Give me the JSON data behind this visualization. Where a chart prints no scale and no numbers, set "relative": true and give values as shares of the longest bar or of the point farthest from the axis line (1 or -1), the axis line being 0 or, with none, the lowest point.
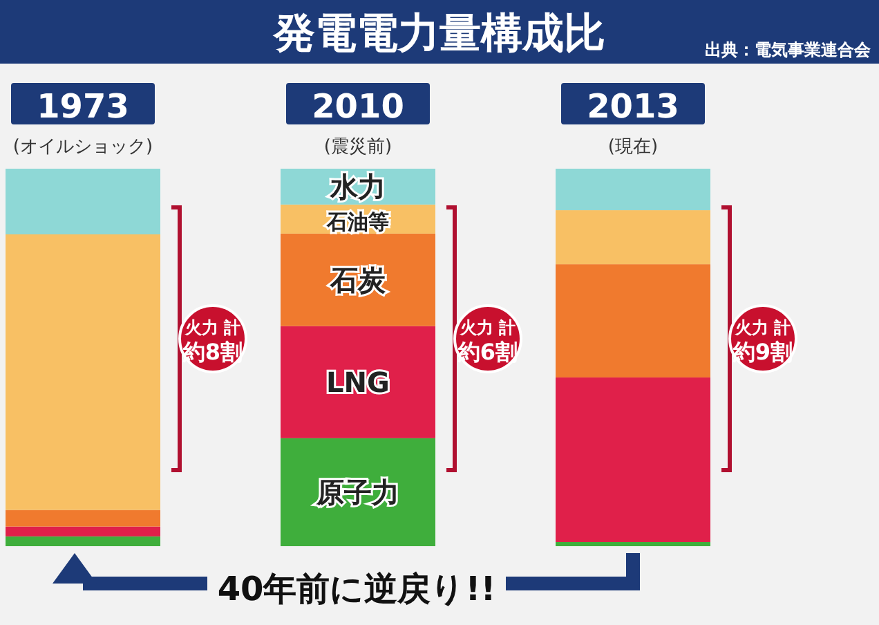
{
  "chart_data": {
    "type": "bar",
    "title": "発電電力量構成比",
    "stacked": true,
    "relative": true,
    "legend": false,
    "categories": [
      "1973\n(オイルショック)",
      "2010\n(震災前)",
      "2013\n(現在)"
    ],
    "series": [
      {
        "name": "原子力",
        "color": "#3fae3c",
        "values": [
          0.026,
          0.286,
          0.011
        ]
      },
      {
        "name": "LNG",
        "color": "#e0204a",
        "values": [
          0.026,
          0.297,
          0.436
        ]
      },
      {
        "name": "石炭",
        "color": "#f07a2e",
        "values": [
          0.044,
          0.245,
          0.3
        ]
      },
      {
        "name": "石油等",
        "color": "#f8c064",
        "values": [
          0.73,
          0.077,
          0.143
        ]
      },
      {
        "name": "水力",
        "color": "#8ed8d6",
        "values": [
          0.174,
          0.095,
          0.11
        ]
      }
    ],
    "annotations": [
      "火力 計約8割",
      "火力 計約6割",
      "火力 計約9割",
      "40年前に逆戻り!!",
      "出典：電気事業連合会"
    ]
  }
}
